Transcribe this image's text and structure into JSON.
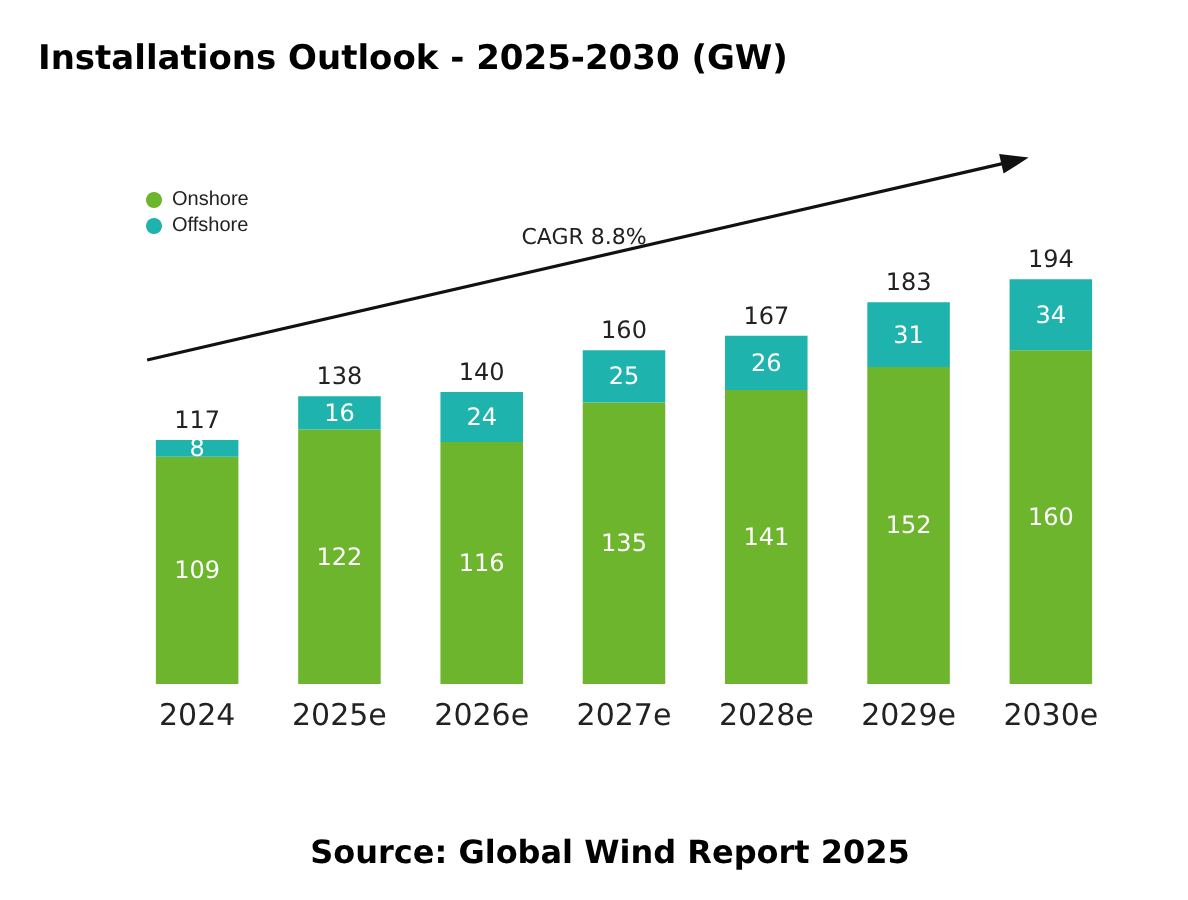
{
  "chart_data": {
    "type": "bar",
    "title": "Installations Outlook - 2025-2030 (GW)",
    "categories": [
      "2024",
      "2025e",
      "2026e",
      "2027e",
      "2028e",
      "2029e",
      "2030e"
    ],
    "stacked": true,
    "data_labels": true,
    "legend": "top left",
    "series": [
      {
        "name": "Onshore",
        "color": "#6cb52d",
        "values": [
          109,
          122,
          116,
          135,
          141,
          152,
          160
        ]
      },
      {
        "name": "Offshore",
        "color": "#1fb3ad",
        "values": [
          8,
          16,
          24,
          25,
          26,
          31,
          34
        ]
      }
    ],
    "totals": [
      "117",
      "138",
      "140",
      "160",
      "167",
      "183",
      "194"
    ],
    "annotations": [
      "CAGR 8.8%",
      "Source: Global Wind Report 2025"
    ]
  }
}
